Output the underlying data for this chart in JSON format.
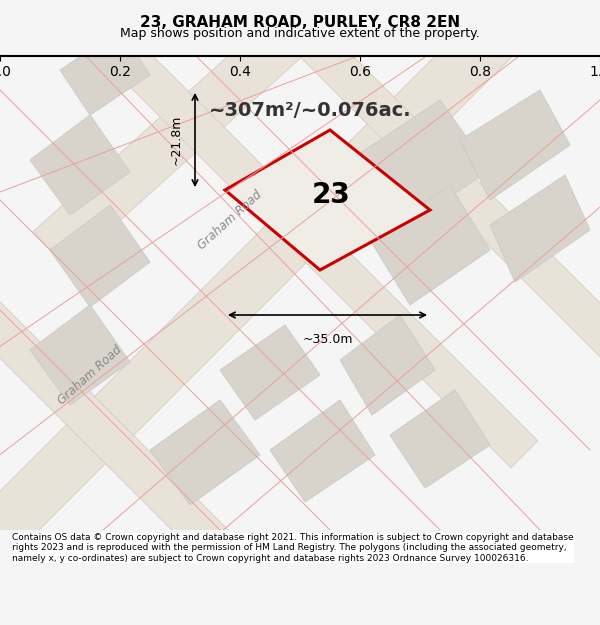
{
  "title_line1": "23, GRAHAM ROAD, PURLEY, CR8 2EN",
  "title_line2": "Map shows position and indicative extent of the property.",
  "footer_text": "Contains OS data © Crown copyright and database right 2021. This information is subject to Crown copyright and database rights 2023 and is reproduced with the permission of HM Land Registry. The polygons (including the associated geometry, namely x, y co-ordinates) are subject to Crown copyright and database rights 2023 Ordnance Survey 100026316.",
  "area_label": "~307m²/~0.076ac.",
  "plot_number": "23",
  "dim_width": "~35.0m",
  "dim_height": "~21.8m",
  "road_label1": "Graham Road",
  "road_label2": "Graham Road",
  "bg_color": "#f5f5f5",
  "map_bg": "#f0ede8",
  "building_color": "#d8d4cc",
  "building_edge": "#cccccc",
  "road_color": "#e8e0d0",
  "street_line_color": "#e8a0a0",
  "plot_fill": "#e8e0d0",
  "plot_edge": "#cc0000",
  "title_bg": "#ffffff",
  "footer_bg": "#ffffff"
}
